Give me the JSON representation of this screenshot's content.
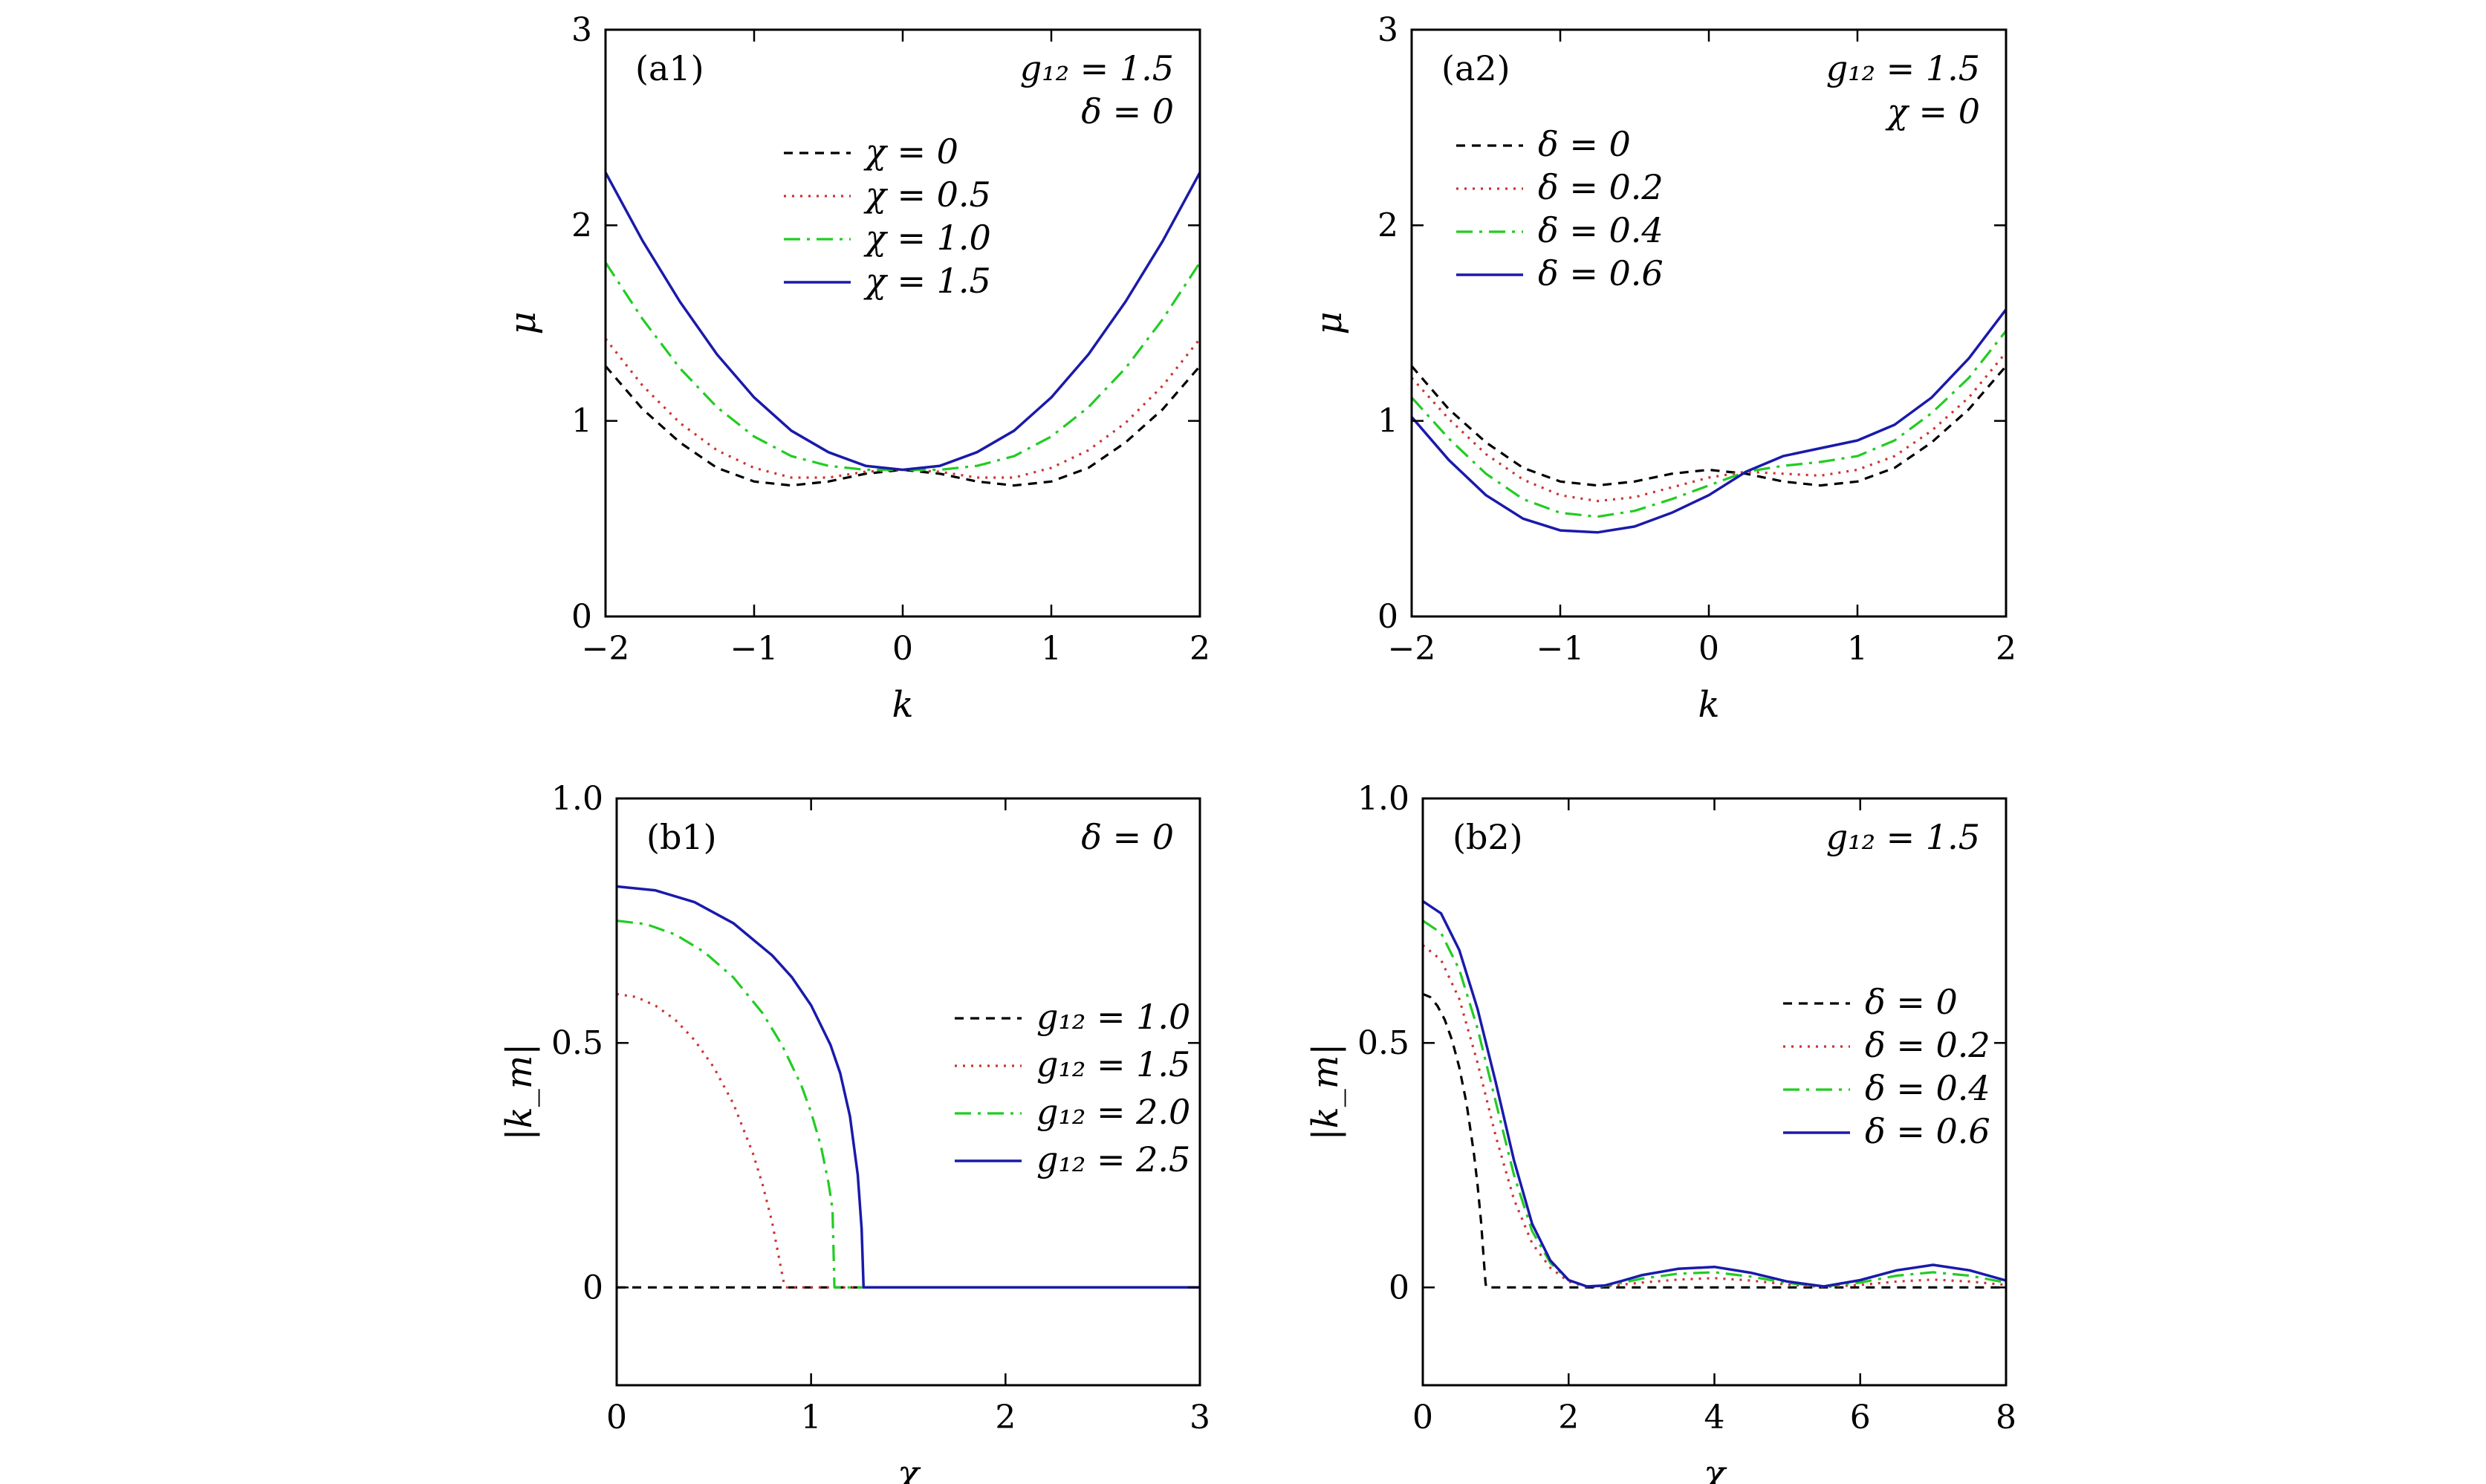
{
  "colors": {
    "black": "#000000",
    "red": "#cc3333",
    "green": "#22cc22",
    "blue": "#1a1aaa"
  },
  "chart_data": [
    {
      "id": "a1",
      "type": "line",
      "panel_label": "(a1)",
      "params": [
        "g₁₂ = 1.5",
        "δ = 0"
      ],
      "xlabel": "k",
      "ylabel": "μ",
      "xlim": [
        -2,
        2
      ],
      "ylim": [
        0,
        3
      ],
      "xticks": [
        -2,
        -1,
        0,
        1,
        2
      ],
      "xtick_labels": [
        "−2",
        "−1",
        "0",
        "1",
        "2"
      ],
      "yticks": [
        0,
        1,
        2,
        3
      ],
      "ytick_labels": [
        "0",
        "1",
        "2",
        "3"
      ],
      "legend_position": "top-center",
      "series": [
        {
          "name": "χ = 0",
          "style": "dashed",
          "color": "black",
          "x": [
            -2.0,
            -1.75,
            -1.5,
            -1.25,
            -1.0,
            -0.75,
            -0.5,
            -0.25,
            0.0,
            0.25,
            0.5,
            0.75,
            1.0,
            1.25,
            1.5,
            1.75,
            2.0
          ],
          "y": [
            1.28,
            1.06,
            0.89,
            0.76,
            0.69,
            0.67,
            0.69,
            0.73,
            0.75,
            0.73,
            0.69,
            0.67,
            0.69,
            0.76,
            0.89,
            1.06,
            1.28
          ]
        },
        {
          "name": "χ = 0.5",
          "style": "dotted",
          "color": "red",
          "x": [
            -2.0,
            -1.75,
            -1.5,
            -1.25,
            -1.0,
            -0.75,
            -0.5,
            -0.25,
            0.0,
            0.25,
            0.5,
            0.75,
            1.0,
            1.25,
            1.5,
            1.75,
            2.0
          ],
          "y": [
            1.42,
            1.18,
            0.99,
            0.85,
            0.76,
            0.71,
            0.71,
            0.74,
            0.75,
            0.74,
            0.71,
            0.71,
            0.76,
            0.85,
            0.99,
            1.18,
            1.42
          ]
        },
        {
          "name": "χ = 1.0",
          "style": "dashdot",
          "color": "green",
          "x": [
            -2.0,
            -1.75,
            -1.5,
            -1.25,
            -1.0,
            -0.75,
            -0.5,
            -0.25,
            0.0,
            0.25,
            0.5,
            0.75,
            1.0,
            1.25,
            1.5,
            1.75,
            2.0
          ],
          "y": [
            1.81,
            1.52,
            1.27,
            1.07,
            0.92,
            0.82,
            0.77,
            0.75,
            0.75,
            0.75,
            0.77,
            0.82,
            0.92,
            1.07,
            1.27,
            1.52,
            1.81
          ]
        },
        {
          "name": "χ = 1.5",
          "style": "solid",
          "color": "blue",
          "x": [
            -2.0,
            -1.75,
            -1.5,
            -1.25,
            -1.0,
            -0.75,
            -0.5,
            -0.25,
            0.0,
            0.25,
            0.5,
            0.75,
            1.0,
            1.25,
            1.5,
            1.75,
            2.0
          ],
          "y": [
            2.27,
            1.92,
            1.61,
            1.34,
            1.12,
            0.95,
            0.84,
            0.77,
            0.75,
            0.77,
            0.84,
            0.95,
            1.12,
            1.34,
            1.61,
            1.92,
            2.27
          ]
        }
      ]
    },
    {
      "id": "a2",
      "type": "line",
      "panel_label": "(a2)",
      "params": [
        "g₁₂ = 1.5",
        "χ = 0"
      ],
      "xlabel": "k",
      "ylabel": "μ",
      "xlim": [
        -2,
        2
      ],
      "ylim": [
        0,
        3
      ],
      "xticks": [
        -2,
        -1,
        0,
        1,
        2
      ],
      "xtick_labels": [
        "−2",
        "−1",
        "0",
        "1",
        "2"
      ],
      "yticks": [
        0,
        1,
        2,
        3
      ],
      "ytick_labels": [
        "0",
        "1",
        "2",
        "3"
      ],
      "legend_position": "top-left",
      "series": [
        {
          "name": "δ = 0",
          "style": "dashed",
          "color": "black",
          "x": [
            -2.0,
            -1.75,
            -1.5,
            -1.25,
            -1.0,
            -0.75,
            -0.5,
            -0.25,
            0.0,
            0.25,
            0.5,
            0.75,
            1.0,
            1.25,
            1.5,
            1.75,
            2.0
          ],
          "y": [
            1.28,
            1.06,
            0.89,
            0.76,
            0.69,
            0.67,
            0.69,
            0.73,
            0.75,
            0.73,
            0.69,
            0.67,
            0.69,
            0.76,
            0.89,
            1.06,
            1.28
          ]
        },
        {
          "name": "δ = 0.2",
          "style": "dotted",
          "color": "red",
          "x": [
            -2.0,
            -1.75,
            -1.5,
            -1.25,
            -1.0,
            -0.75,
            -0.5,
            -0.25,
            0.0,
            0.25,
            0.5,
            0.75,
            1.0,
            1.25,
            1.5,
            1.75,
            2.0
          ],
          "y": [
            1.22,
            1.01,
            0.83,
            0.7,
            0.62,
            0.59,
            0.61,
            0.66,
            0.71,
            0.74,
            0.73,
            0.72,
            0.75,
            0.82,
            0.95,
            1.12,
            1.35
          ]
        },
        {
          "name": "δ = 0.4",
          "style": "dashdot",
          "color": "green",
          "x": [
            -2.0,
            -1.75,
            -1.5,
            -1.25,
            -1.0,
            -0.75,
            -0.5,
            -0.25,
            0.0,
            0.25,
            0.5,
            0.75,
            1.0,
            1.25,
            1.5,
            1.75,
            2.0
          ],
          "y": [
            1.12,
            0.91,
            0.73,
            0.6,
            0.53,
            0.51,
            0.54,
            0.6,
            0.67,
            0.74,
            0.77,
            0.79,
            0.82,
            0.9,
            1.04,
            1.22,
            1.46
          ]
        },
        {
          "name": "δ = 0.6",
          "style": "solid",
          "color": "blue",
          "x": [
            -2.0,
            -1.75,
            -1.5,
            -1.25,
            -1.0,
            -0.75,
            -0.5,
            -0.25,
            0.0,
            0.25,
            0.5,
            0.75,
            1.0,
            1.25,
            1.5,
            1.75,
            2.0
          ],
          "y": [
            1.02,
            0.8,
            0.62,
            0.5,
            0.44,
            0.43,
            0.46,
            0.53,
            0.62,
            0.74,
            0.82,
            0.86,
            0.9,
            0.98,
            1.12,
            1.32,
            1.57
          ]
        }
      ]
    },
    {
      "id": "b1",
      "type": "line",
      "panel_label": "(b1)",
      "params": [
        "δ = 0"
      ],
      "xlabel": "χ",
      "ylabel": "|k_m|",
      "xlim": [
        0,
        3
      ],
      "ylim": [
        -0.2,
        1.0
      ],
      "xticks": [
        0,
        1,
        2,
        3
      ],
      "xtick_labels": [
        "0",
        "1",
        "2",
        "3"
      ],
      "yticks": [
        0,
        0.5,
        1.0
      ],
      "ytick_labels": [
        "0",
        "0.5",
        "1.0"
      ],
      "legend_position": "center-right",
      "series": [
        {
          "name": "g₁₂ = 1.0",
          "style": "dashed",
          "color": "black",
          "x": [
            0,
            3
          ],
          "y": [
            0,
            0
          ]
        },
        {
          "name": "g₁₂ = 1.5",
          "style": "dotted",
          "color": "red",
          "x": [
            0.0,
            0.1,
            0.2,
            0.3,
            0.4,
            0.5,
            0.6,
            0.7,
            0.75,
            0.8,
            0.84,
            0.86,
            0.87,
            3.0
          ],
          "y": [
            0.6,
            0.594,
            0.576,
            0.548,
            0.506,
            0.45,
            0.376,
            0.275,
            0.211,
            0.133,
            0.05,
            0.01,
            0,
            0
          ]
        },
        {
          "name": "g₁₂ = 2.0",
          "style": "dashdot",
          "color": "green",
          "x": [
            0.0,
            0.15,
            0.3,
            0.45,
            0.6,
            0.75,
            0.85,
            0.95,
            1.0,
            1.05,
            1.09,
            1.11,
            1.12,
            3.0
          ],
          "y": [
            0.75,
            0.743,
            0.722,
            0.686,
            0.634,
            0.561,
            0.496,
            0.413,
            0.358,
            0.29,
            0.213,
            0.16,
            0,
            0
          ]
        },
        {
          "name": "g₁₂ = 2.5",
          "style": "solid",
          "color": "blue",
          "x": [
            0.0,
            0.2,
            0.4,
            0.6,
            0.8,
            0.9,
            1.0,
            1.1,
            1.15,
            1.2,
            1.24,
            1.26,
            1.27,
            3.0
          ],
          "y": [
            0.82,
            0.812,
            0.788,
            0.745,
            0.679,
            0.635,
            0.577,
            0.496,
            0.438,
            0.35,
            0.23,
            0.12,
            0,
            0
          ]
        }
      ]
    },
    {
      "id": "b2",
      "type": "line",
      "panel_label": "(b2)",
      "params": [
        "g₁₂ = 1.5"
      ],
      "xlabel": "χ",
      "ylabel": "|k_m|",
      "xlim": [
        0,
        8
      ],
      "ylim": [
        -0.2,
        1.0
      ],
      "xticks": [
        0,
        2,
        4,
        6,
        8
      ],
      "xtick_labels": [
        "0",
        "2",
        "4",
        "6",
        "8"
      ],
      "yticks": [
        0,
        0.5,
        1.0
      ],
      "ytick_labels": [
        "0",
        "0.5",
        "1.0"
      ],
      "legend_position": "top-right",
      "series": [
        {
          "name": "δ = 0",
          "style": "dashed",
          "color": "black",
          "x": [
            0.0,
            0.1,
            0.2,
            0.3,
            0.4,
            0.5,
            0.6,
            0.7,
            0.75,
            0.8,
            0.84,
            0.86,
            0.87,
            8.0
          ],
          "y": [
            0.6,
            0.594,
            0.576,
            0.548,
            0.506,
            0.45,
            0.376,
            0.275,
            0.211,
            0.133,
            0.05,
            0.01,
            0,
            0
          ]
        },
        {
          "name": "δ = 0.2",
          "style": "dotted",
          "color": "red",
          "x": [
            0.0,
            0.25,
            0.5,
            0.75,
            1.0,
            1.25,
            1.5,
            1.75,
            2.0,
            2.25,
            2.5,
            2.75,
            3.0,
            3.5,
            4.0,
            4.5,
            5.0,
            5.5,
            6.0,
            6.5,
            7.0,
            7.5,
            8.0
          ],
          "y": [
            0.7,
            0.67,
            0.59,
            0.46,
            0.31,
            0.18,
            0.09,
            0.04,
            0.012,
            0.001,
            0.002,
            0.006,
            0.01,
            0.016,
            0.019,
            0.014,
            0.006,
            0.001,
            0.005,
            0.012,
            0.016,
            0.012,
            0.005
          ]
        },
        {
          "name": "δ = 0.4",
          "style": "dashdot",
          "color": "green",
          "x": [
            0.0,
            0.25,
            0.5,
            0.75,
            1.0,
            1.25,
            1.5,
            1.75,
            2.0,
            2.25,
            2.5,
            2.75,
            3.0,
            3.5,
            4.0,
            4.5,
            5.0,
            5.5,
            6.0,
            6.5,
            7.0,
            7.5,
            8.0
          ],
          "y": [
            0.75,
            0.725,
            0.65,
            0.53,
            0.38,
            0.23,
            0.115,
            0.05,
            0.015,
            0.002,
            0.003,
            0.01,
            0.018,
            0.028,
            0.031,
            0.022,
            0.009,
            0.002,
            0.01,
            0.024,
            0.031,
            0.024,
            0.01
          ]
        },
        {
          "name": "δ = 0.6",
          "style": "solid",
          "color": "blue",
          "x": [
            0.0,
            0.25,
            0.5,
            0.75,
            1.0,
            1.25,
            1.5,
            1.75,
            2.0,
            2.25,
            2.5,
            2.75,
            3.0,
            3.5,
            4.0,
            4.5,
            5.0,
            5.5,
            6.0,
            6.5,
            7.0,
            7.5,
            8.0
          ],
          "y": [
            0.79,
            0.765,
            0.69,
            0.57,
            0.42,
            0.26,
            0.13,
            0.055,
            0.015,
            0.002,
            0.004,
            0.014,
            0.025,
            0.038,
            0.042,
            0.03,
            0.012,
            0.002,
            0.015,
            0.035,
            0.046,
            0.035,
            0.014
          ]
        }
      ]
    }
  ]
}
